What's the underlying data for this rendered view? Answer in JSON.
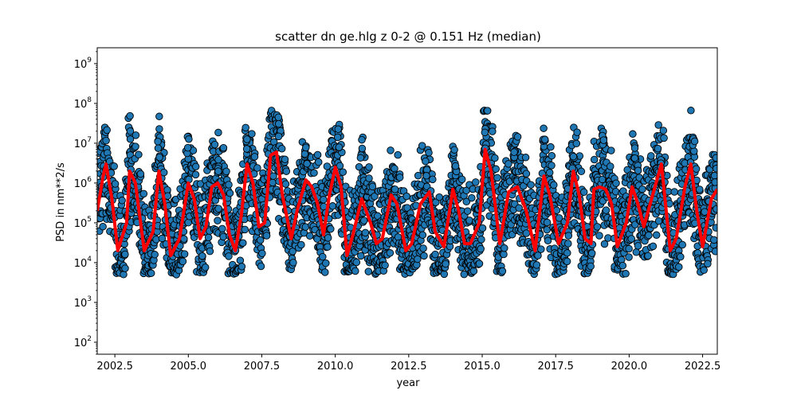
{
  "chart_data": {
    "type": "scatter",
    "title": "scatter dn ge.hlg z 0-2 @ 0.151 Hz (median)",
    "xlabel": "year",
    "ylabel": "PSD in nm**2/s",
    "xlim": [
      2001.9,
      2023.0
    ],
    "ylim": [
      50,
      2500000000
    ],
    "yscale": "log",
    "grid": false,
    "x_ticks": [
      2002.5,
      2005.0,
      2007.5,
      2010.0,
      2012.5,
      2015.0,
      2017.5,
      2020.0,
      2022.5
    ],
    "x_tick_labels": [
      "2002.5",
      "2005.0",
      "2007.5",
      "2010.0",
      "2012.5",
      "2015.0",
      "2017.5",
      "2020.0",
      "2022.5"
    ],
    "y_ticks": [
      100,
      1000,
      10000,
      100000,
      1000000,
      10000000,
      100000000,
      1000000000
    ],
    "y_tick_labels": [
      "10^2",
      "10^3",
      "10^4",
      "10^5",
      "10^6",
      "10^7",
      "10^8",
      "10^9"
    ],
    "series": [
      {
        "kind": "points",
        "color": "#1f77b4",
        "edge_color": "#000000",
        "seasonal_annual_peaks": [
          [
            2003.0,
            50000000.0
          ],
          [
            2004.0,
            15000000.0
          ],
          [
            2005.0,
            15000000.0
          ],
          [
            2006.0,
            5000000.0
          ],
          [
            2007.0,
            15000000.0
          ],
          [
            2008.1,
            50000000.0
          ],
          [
            2009.0,
            10000000.0
          ],
          [
            2010.1,
            30000000.0
          ],
          [
            2010.9,
            15000000.0
          ],
          [
            2012.0,
            1000000.0
          ],
          [
            2013.1,
            5000000.0
          ],
          [
            2014.1,
            5000000.0
          ],
          [
            2015.1,
            25000000.0
          ],
          [
            2016.1,
            10000000.0
          ],
          [
            2017.1,
            30000000.0
          ],
          [
            2018.1,
            5000000.0
          ],
          [
            2019.1,
            30000000.0
          ],
          [
            2020.2,
            15000000.0
          ],
          [
            2021.1,
            5000000.0
          ],
          [
            2022.2,
            20000000.0
          ]
        ],
        "range_low": 5000,
        "range_high": 70000000
      },
      {
        "kind": "line",
        "color": "#ff0000",
        "x": [
          2001.9,
          2002.1,
          2002.2,
          2002.4,
          2002.6,
          2002.9,
          2003.0,
          2003.2,
          2003.5,
          2003.8,
          2004.0,
          2004.2,
          2004.4,
          2004.7,
          2005.0,
          2005.2,
          2005.4,
          2005.6,
          2005.8,
          2006.0,
          2006.2,
          2006.4,
          2006.6,
          2006.8,
          2007.0,
          2007.2,
          2007.4,
          2007.6,
          2007.8,
          2008.0,
          2008.2,
          2008.5,
          2008.7,
          2009.0,
          2009.2,
          2009.4,
          2009.6,
          2009.8,
          2010.0,
          2010.2,
          2010.4,
          2010.6,
          2010.9,
          2011.2,
          2011.4,
          2011.6,
          2011.9,
          2012.1,
          2012.4,
          2012.6,
          2012.9,
          2013.2,
          2013.4,
          2013.7,
          2014.0,
          2014.2,
          2014.4,
          2014.6,
          2014.9,
          2015.1,
          2015.3,
          2015.6,
          2015.9,
          2016.2,
          2016.5,
          2016.8,
          2017.1,
          2017.3,
          2017.6,
          2017.9,
          2018.1,
          2018.3,
          2018.5,
          2018.7,
          2018.8,
          2019.0,
          2019.2,
          2019.4,
          2019.6,
          2019.9,
          2020.1,
          2020.3,
          2020.5,
          2020.8,
          2021.1,
          2021.4,
          2021.6,
          2021.9,
          2022.1,
          2022.3,
          2022.5,
          2022.8,
          2023.0
        ],
        "y": [
          200000,
          1500000,
          3000000,
          400000,
          20000,
          100000,
          2000000,
          1000000,
          20000,
          60000,
          2000000,
          300000,
          15000,
          40000,
          1000000,
          400000,
          40000,
          80000,
          800000,
          1000000,
          500000,
          50000,
          20000,
          150000,
          3000000,
          1000000,
          80000,
          100000,
          5000000,
          6000000,
          500000,
          40000,
          200000,
          1200000,
          800000,
          300000,
          50000,
          500000,
          2500000,
          800000,
          15000,
          50000,
          400000,
          100000,
          30000,
          40000,
          500000,
          300000,
          20000,
          30000,
          300000,
          600000,
          60000,
          25000,
          700000,
          200000,
          30000,
          30000,
          100000,
          7000000,
          2000000,
          30000,
          600000,
          800000,
          200000,
          20000,
          1500000,
          500000,
          30000,
          100000,
          2000000,
          500000,
          40000,
          30000,
          700000,
          800000,
          700000,
          300000,
          25000,
          100000,
          800000,
          300000,
          80000,
          500000,
          3000000,
          20000,
          40000,
          800000,
          3000000,
          200000,
          25000,
          400000,
          700000
        ]
      }
    ]
  }
}
